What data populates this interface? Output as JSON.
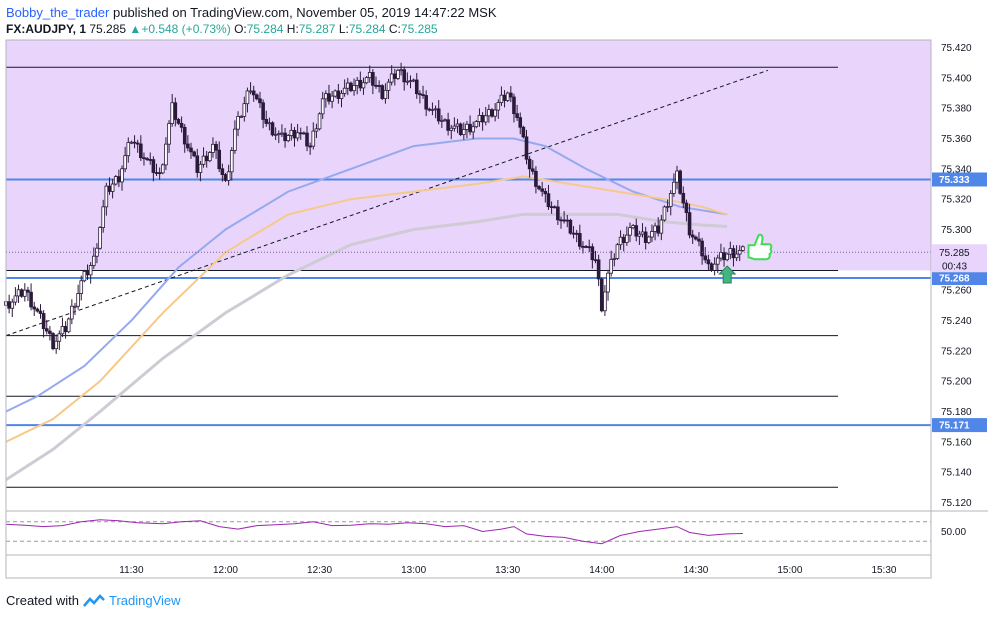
{
  "header": {
    "author": "Bobby_the_trader",
    "published_text": "published on TradingView.com, November 05, 2019 14:47:22 MSK",
    "symbol": "FX:AUDJPY, 1",
    "last_price": "75.285",
    "change": "+0.548 (+0.73%)",
    "o_label": "O:",
    "o_value": "75.284",
    "h_label": "H:",
    "h_value": "75.287",
    "l_label": "L:",
    "l_value": "75.284",
    "c_label": "C:",
    "c_value": "75.285"
  },
  "footer": {
    "created_with": "Created with",
    "brand": "TradingView"
  },
  "colors": {
    "zone": "#e9d5fc",
    "candle": "#2b1a3a",
    "ma_blue": "#95a9ee",
    "ma_orange": "#f6c98a",
    "ma_grey": "#cfcbd4",
    "level_blue": "#4f86e8",
    "rsi": "#9c27b0",
    "arrow": "#43b581",
    "thumb": "#3ddc55"
  },
  "chart_data": {
    "type": "candlestick",
    "y_axis": {
      "range": [
        75.115,
        75.425
      ],
      "ticks": [
        "75.420",
        "75.400",
        "75.380",
        "75.360",
        "75.340",
        "75.320",
        "75.300",
        "75.280",
        "75.260",
        "75.240",
        "75.220",
        "75.200",
        "75.180",
        "75.160",
        "75.140",
        "75.120"
      ]
    },
    "x_axis": {
      "range_minutes": [
        650,
        945
      ],
      "ticks": [
        {
          "label": "11:30",
          "t": 690
        },
        {
          "label": "12:00",
          "t": 720
        },
        {
          "label": "12:30",
          "t": 750
        },
        {
          "label": "13:00",
          "t": 780
        },
        {
          "label": "13:30",
          "t": 810
        },
        {
          "label": "14:00",
          "t": 840
        },
        {
          "label": "14:30",
          "t": 870
        },
        {
          "label": "15:00",
          "t": 900
        },
        {
          "label": "15:30",
          "t": 930
        }
      ]
    },
    "horizontal_levels": [
      {
        "value": 75.407,
        "style": "black"
      },
      {
        "value": 75.333,
        "style": "blue",
        "label": "75.333"
      },
      {
        "value": 75.273,
        "style": "black"
      },
      {
        "value": 75.268,
        "style": "blue",
        "label": "75.268"
      },
      {
        "value": 75.23,
        "style": "black"
      },
      {
        "value": 75.19,
        "style": "black"
      },
      {
        "value": 75.171,
        "style": "blue",
        "label": "75.171"
      },
      {
        "value": 75.13,
        "style": "black"
      }
    ],
    "zone": {
      "from": 75.273,
      "to": 75.425
    },
    "trendline": {
      "t1": 650,
      "p1": 75.23,
      "t2": 893,
      "p2": 75.405
    },
    "price_tag": {
      "label": "75.285",
      "value": 75.285
    },
    "countdown": {
      "label": "00:43"
    },
    "path_points": [
      [
        650,
        75.25
      ],
      [
        656,
        75.26
      ],
      [
        660,
        75.245
      ],
      [
        665,
        75.225
      ],
      [
        669,
        75.235
      ],
      [
        674,
        75.265
      ],
      [
        678,
        75.28
      ],
      [
        682,
        75.325
      ],
      [
        686,
        75.335
      ],
      [
        690,
        75.36
      ],
      [
        695,
        75.345
      ],
      [
        699,
        75.335
      ],
      [
        703,
        75.38
      ],
      [
        707,
        75.36
      ],
      [
        711,
        75.34
      ],
      [
        716,
        75.355
      ],
      [
        720,
        75.33
      ],
      [
        723,
        75.365
      ],
      [
        728,
        75.395
      ],
      [
        733,
        75.37
      ],
      [
        738,
        75.36
      ],
      [
        743,
        75.365
      ],
      [
        747,
        75.355
      ],
      [
        751,
        75.385
      ],
      [
        756,
        75.39
      ],
      [
        761,
        75.395
      ],
      [
        766,
        75.4
      ],
      [
        770,
        75.39
      ],
      [
        775,
        75.405
      ],
      [
        780,
        75.395
      ],
      [
        785,
        75.38
      ],
      [
        790,
        75.37
      ],
      [
        795,
        75.365
      ],
      [
        800,
        75.37
      ],
      [
        806,
        75.38
      ],
      [
        810,
        75.39
      ],
      [
        813,
        75.375
      ],
      [
        817,
        75.34
      ],
      [
        822,
        75.32
      ],
      [
        826,
        75.31
      ],
      [
        830,
        75.3
      ],
      [
        834,
        75.29
      ],
      [
        838,
        75.28
      ],
      [
        840,
        75.25
      ],
      [
        842,
        75.27
      ],
      [
        845,
        75.29
      ],
      [
        849,
        75.3
      ],
      [
        854,
        75.295
      ],
      [
        858,
        75.3
      ],
      [
        862,
        75.325
      ],
      [
        864,
        75.335
      ],
      [
        868,
        75.3
      ],
      [
        872,
        75.285
      ],
      [
        874,
        75.275
      ],
      [
        877,
        75.28
      ],
      [
        881,
        75.285
      ],
      [
        885,
        75.285
      ]
    ],
    "moving_averages": [
      {
        "color": "blue",
        "points": [
          [
            650,
            75.18
          ],
          [
            660,
            75.19
          ],
          [
            675,
            75.21
          ],
          [
            690,
            75.24
          ],
          [
            705,
            75.275
          ],
          [
            720,
            75.3
          ],
          [
            740,
            75.325
          ],
          [
            760,
            75.34
          ],
          [
            780,
            75.355
          ],
          [
            800,
            75.36
          ],
          [
            812,
            75.36
          ],
          [
            822,
            75.355
          ],
          [
            835,
            75.34
          ],
          [
            850,
            75.325
          ],
          [
            865,
            75.315
          ],
          [
            880,
            75.31
          ]
        ]
      },
      {
        "color": "orange",
        "points": [
          [
            650,
            75.16
          ],
          [
            665,
            75.175
          ],
          [
            680,
            75.2
          ],
          [
            700,
            75.245
          ],
          [
            720,
            75.285
          ],
          [
            740,
            75.31
          ],
          [
            760,
            75.32
          ],
          [
            780,
            75.325
          ],
          [
            800,
            75.33
          ],
          [
            815,
            75.335
          ],
          [
            830,
            75.33
          ],
          [
            845,
            75.325
          ],
          [
            860,
            75.32
          ],
          [
            872,
            75.315
          ],
          [
            880,
            75.31
          ]
        ]
      },
      {
        "color": "grey",
        "points": [
          [
            650,
            75.135
          ],
          [
            665,
            75.155
          ],
          [
            680,
            75.18
          ],
          [
            700,
            75.215
          ],
          [
            720,
            75.245
          ],
          [
            740,
            75.27
          ],
          [
            760,
            75.29
          ],
          [
            780,
            75.3
          ],
          [
            800,
            75.305
          ],
          [
            815,
            75.31
          ],
          [
            830,
            75.31
          ],
          [
            845,
            75.31
          ],
          [
            860,
            75.305
          ],
          [
            872,
            75.303
          ],
          [
            880,
            75.302
          ]
        ]
      }
    ],
    "rsi": {
      "ticks": [
        "50.00"
      ],
      "upper_band": 70,
      "lower_band": 30,
      "range": [
        10,
        90
      ],
      "points": [
        [
          650,
          65
        ],
        [
          656,
          63
        ],
        [
          662,
          60
        ],
        [
          668,
          62
        ],
        [
          674,
          70
        ],
        [
          680,
          74
        ],
        [
          686,
          72
        ],
        [
          692,
          68
        ],
        [
          700,
          66
        ],
        [
          706,
          70
        ],
        [
          712,
          72
        ],
        [
          718,
          60
        ],
        [
          724,
          55
        ],
        [
          730,
          62
        ],
        [
          736,
          64
        ],
        [
          742,
          66
        ],
        [
          748,
          70
        ],
        [
          754,
          62
        ],
        [
          760,
          63
        ],
        [
          766,
          66
        ],
        [
          772,
          65
        ],
        [
          778,
          68
        ],
        [
          784,
          66
        ],
        [
          790,
          60
        ],
        [
          796,
          62
        ],
        [
          802,
          50
        ],
        [
          808,
          55
        ],
        [
          812,
          60
        ],
        [
          816,
          45
        ],
        [
          822,
          40
        ],
        [
          828,
          38
        ],
        [
          834,
          30
        ],
        [
          840,
          25
        ],
        [
          846,
          42
        ],
        [
          852,
          50
        ],
        [
          858,
          55
        ],
        [
          864,
          60
        ],
        [
          868,
          48
        ],
        [
          874,
          42
        ],
        [
          880,
          45
        ],
        [
          885,
          46
        ]
      ]
    }
  }
}
